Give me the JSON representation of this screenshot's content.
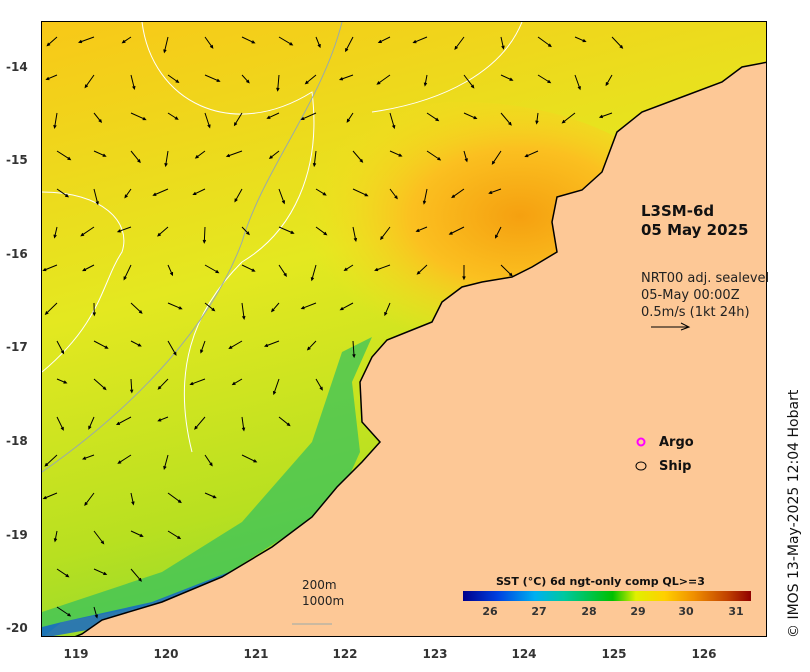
{
  "x_ticks": [
    "119",
    "120",
    "121",
    "122",
    "123",
    "124",
    "125",
    "126"
  ],
  "y_ticks": [
    "-14",
    "-15",
    "-16",
    "-17",
    "-18",
    "-19",
    "-20"
  ],
  "title": {
    "product": "L3SM-6d",
    "date": "05 May 2025"
  },
  "velocity": {
    "line1": "NRT00 adj. sealevel",
    "line2": "05-May 00:00Z",
    "line3": "0.5m/s (1kt 24h)"
  },
  "legend": {
    "argo": "Argo",
    "ship": "Ship"
  },
  "contours": {
    "c200": "200m",
    "c1000": "1000m"
  },
  "colorbar": {
    "title": "SST (°C) 6d ngt-only comp QL>=3",
    "labels": [
      "26",
      "27",
      "28",
      "29",
      "30",
      "31"
    ]
  },
  "credit": "© IMOS 13-May-2025 12:04 Hobart",
  "colors": {
    "land": "#fdc896",
    "argo": "#ff00ff"
  }
}
